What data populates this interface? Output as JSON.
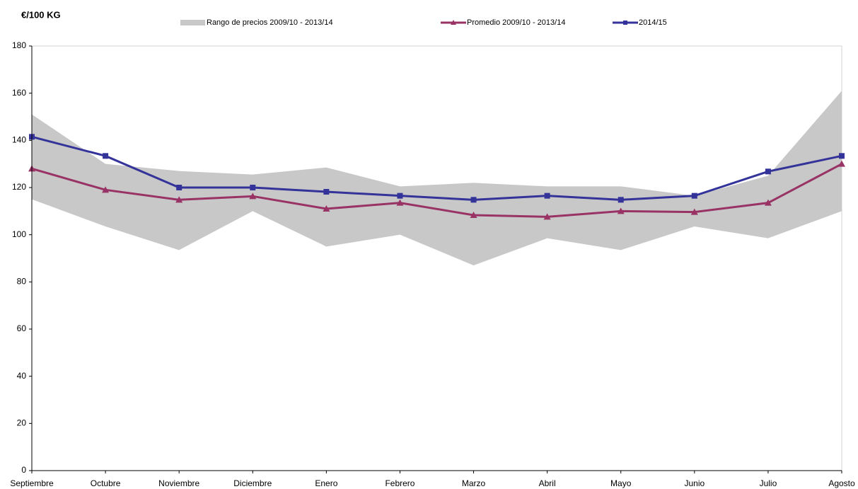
{
  "chart_data": {
    "type": "line",
    "y_label": "€/100 KG",
    "categories": [
      "Septiembre",
      "Octubre",
      "Noviembre",
      "Diciembre",
      "Enero",
      "Febrero",
      "Marzo",
      "Abril",
      "Mayo",
      "Junio",
      "Julio",
      "Agosto"
    ],
    "ylim": [
      0,
      180
    ],
    "yticks": [
      0,
      20,
      40,
      60,
      80,
      100,
      120,
      140,
      160,
      180
    ],
    "grid": false,
    "series": [
      {
        "name": "Rango de precios 2009/10 - 2013/14",
        "color": "#c8c8c8",
        "kind": "range",
        "high": [
          151,
          130,
          127,
          125.5,
          128.5,
          120.5,
          122,
          120.5,
          120.5,
          116.5,
          125,
          161
        ],
        "low": [
          115,
          103.5,
          93.5,
          110,
          95,
          100,
          87,
          98.5,
          93.5,
          103.5,
          98.5,
          110
        ]
      },
      {
        "name": "Promedio 2009/10 - 2013/14",
        "color": "#993366",
        "kind": "line",
        "marker": "triangle",
        "values": [
          128,
          119,
          114.8,
          116.3,
          111,
          113.5,
          108.3,
          107.6,
          110,
          109.6,
          113.5,
          130
        ]
      },
      {
        "name": "2014/15",
        "color": "#333399",
        "kind": "line",
        "marker": "square",
        "values": [
          141.5,
          133.4,
          120,
          120,
          118.2,
          116.5,
          114.8,
          116.5,
          114.8,
          116.5,
          126.8,
          133.4
        ]
      }
    ]
  }
}
